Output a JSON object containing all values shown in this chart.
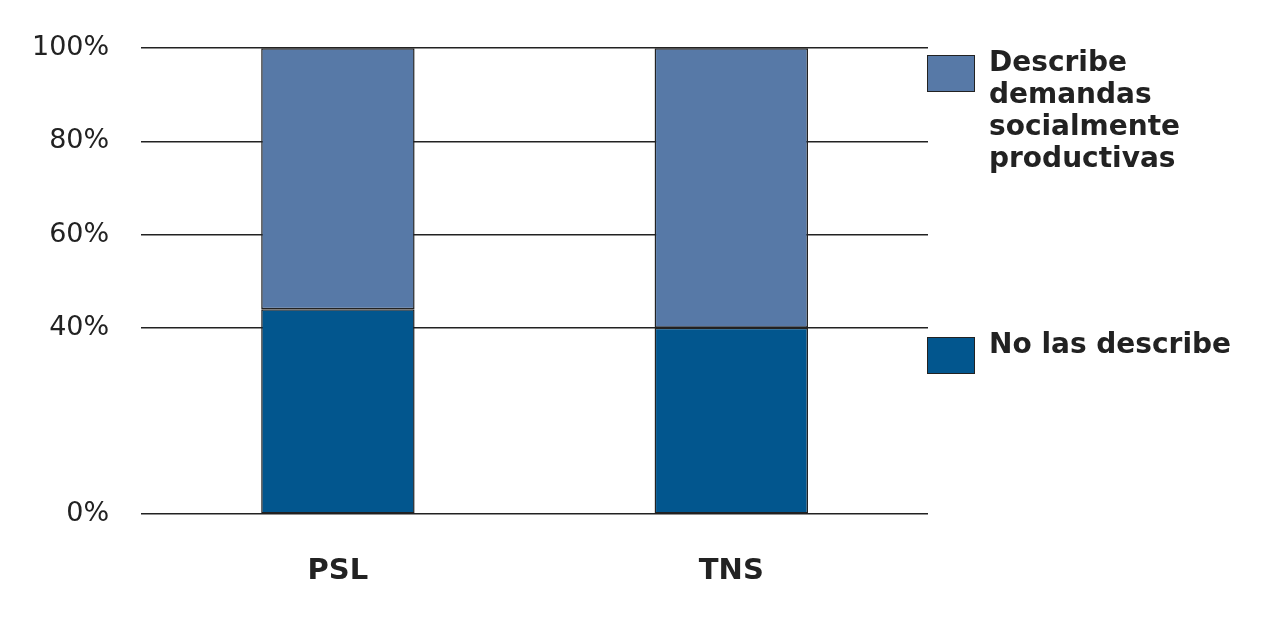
{
  "chart_data": {
    "type": "bar",
    "stacked": true,
    "categories": [
      "PSL",
      "TNS"
    ],
    "series": [
      {
        "name": "No las describe",
        "color": "#02568e",
        "values": [
          44,
          40
        ]
      },
      {
        "name": "Describe demandas socialmente productivas",
        "color": "#5779a7",
        "values": [
          56,
          60
        ]
      }
    ],
    "ylim": [
      0,
      100
    ],
    "yticks": [
      {
        "value": 0,
        "label": "0%"
      },
      {
        "value": 40,
        "label": "40%"
      },
      {
        "value": 60,
        "label": "60%"
      },
      {
        "value": 80,
        "label": "80%"
      },
      {
        "value": 100,
        "label": "100%"
      }
    ],
    "grid": "y",
    "legend": "right"
  }
}
